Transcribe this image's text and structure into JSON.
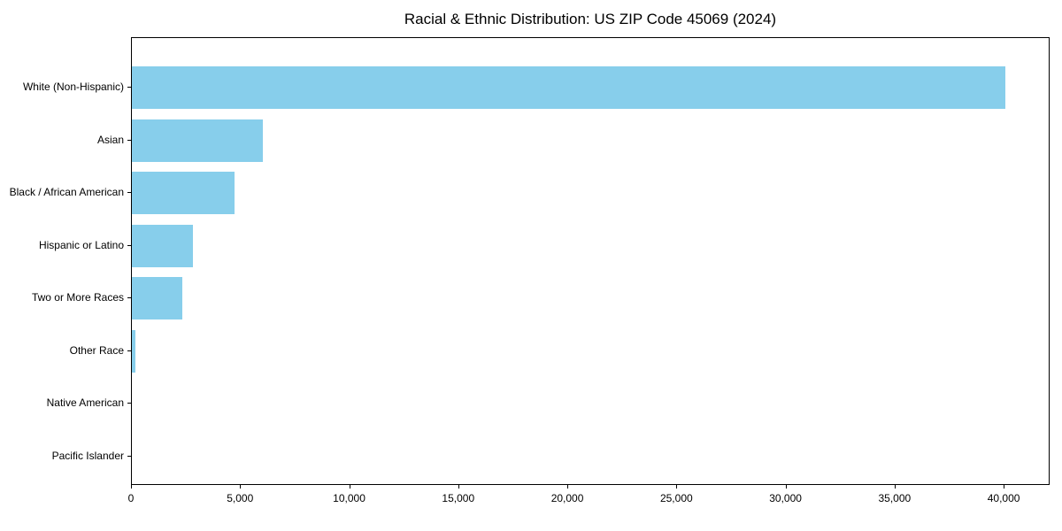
{
  "title": "Racial & Ethnic Distribution: US ZIP Code 45069 (2024)",
  "colors": {
    "bar": "#87CEEB",
    "axis": "#000000",
    "text": "#000000",
    "background": "#FFFFFF"
  },
  "chart_data": {
    "type": "bar",
    "orientation": "horizontal",
    "title": "Racial & Ethnic Distribution: US ZIP Code 45069 (2024)",
    "categories": [
      "White (Non-Hispanic)",
      "Asian",
      "Black / African American",
      "Hispanic or Latino",
      "Two or More Races",
      "Other Race",
      "Native American",
      "Pacific Islander"
    ],
    "values": [
      40100,
      6000,
      4700,
      2800,
      2300,
      180,
      0,
      0
    ],
    "xlabel": "",
    "ylabel": "",
    "xlim": [
      0,
      42105
    ],
    "xticks": [
      0,
      5000,
      10000,
      15000,
      20000,
      25000,
      30000,
      35000,
      40000
    ],
    "xtick_labels": [
      "0",
      "5,000",
      "10,000",
      "15,000",
      "20,000",
      "25,000",
      "30,000",
      "35,000",
      "40,000"
    ],
    "grid": false,
    "legend": null,
    "bar_color": "#87CEEB"
  }
}
